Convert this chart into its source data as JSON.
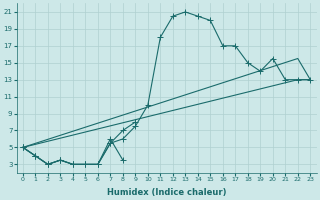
{
  "xlabel": "Humidex (Indice chaleur)",
  "background_color": "#cde8e8",
  "grid_color": "#b0d0d0",
  "line_color": "#1a6b6b",
  "xlim": [
    -0.5,
    23.5
  ],
  "ylim": [
    2,
    22
  ],
  "xticks": [
    0,
    1,
    2,
    3,
    4,
    5,
    6,
    7,
    8,
    9,
    10,
    11,
    12,
    13,
    14,
    15,
    16,
    17,
    18,
    19,
    20,
    21,
    22,
    23
  ],
  "yticks": [
    3,
    5,
    7,
    9,
    11,
    13,
    15,
    17,
    19,
    21
  ],
  "curve1_x": [
    0,
    1,
    2,
    3,
    4,
    5,
    6,
    7,
    8,
    9,
    10,
    11,
    12,
    13,
    14,
    15,
    16,
    17,
    18,
    19,
    20,
    21,
    22,
    23
  ],
  "curve1_y": [
    5,
    4,
    3,
    3.5,
    3,
    3,
    3,
    5.5,
    6,
    7.5,
    10,
    18,
    20.5,
    21,
    20.5,
    20,
    17,
    17,
    15,
    14,
    15.5,
    13,
    13,
    13
  ],
  "curve2_x": [
    0,
    1,
    2,
    3,
    4,
    5,
    6,
    7,
    8
  ],
  "curve2_y": [
    5,
    4,
    3,
    3.5,
    3,
    3,
    3,
    6,
    3.5
  ],
  "curve3_x": [
    0,
    1,
    2,
    3,
    4,
    5,
    6,
    7,
    8,
    9
  ],
  "curve3_y": [
    5,
    4,
    3,
    3.5,
    3,
    3,
    3,
    5.5,
    7,
    8
  ],
  "line1_x": [
    0,
    22,
    23
  ],
  "line1_y": [
    5,
    13,
    13
  ],
  "line2_x": [
    0,
    22,
    23
  ],
  "line2_y": [
    5,
    15.5,
    13
  ]
}
